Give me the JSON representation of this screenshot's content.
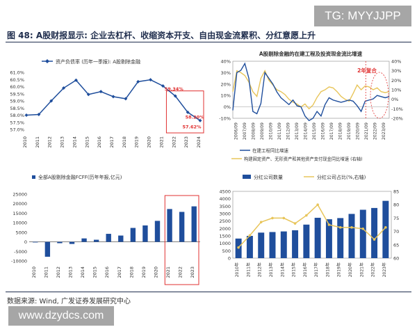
{
  "watermark_top": "TG: MYYJJPP",
  "figure_title": "图 48: A股财报显示: 企业去杠杆、收缩资本开支、自由现金流累积、分红意愿上升",
  "source": "数据来源: Wind, 广发证券发展研究中心",
  "watermark_bottom": "www.dzydcs.com",
  "colors": {
    "navy": "#1f4e9c",
    "gold": "#e8c55a",
    "red": "#e03030",
    "text": "#1f2d4d"
  },
  "chart_data": [
    {
      "type": "line",
      "legend": [
        "资产负债率 (历年一季报): A股剔除金融"
      ],
      "x": [
        "2010",
        "2011",
        "2012",
        "2013",
        "2014",
        "2015",
        "2016",
        "2017",
        "2018",
        "2019",
        "2020",
        "2021",
        "2022",
        "2023",
        "2024"
      ],
      "series": [
        {
          "name": "资产负债率 (历年一季报): A股剔除金融",
          "values": [
            58.0,
            58.05,
            59.0,
            59.9,
            60.45,
            59.45,
            59.65,
            59.3,
            59.15,
            60.35,
            60.48,
            60.05,
            59.34,
            58.2,
            57.62
          ]
        }
      ],
      "ylim": [
        57.0,
        61.0
      ],
      "yticks": [
        "57.0%",
        "57.5%",
        "58.0%",
        "58.5%",
        "59.0%",
        "59.5%",
        "60.0%",
        "60.5%",
        "61.0%"
      ],
      "annotations": [
        "59.34%",
        "58.20%",
        "57.62%"
      ],
      "grid": false
    },
    {
      "type": "line",
      "title": "A股剔除金融的在建工程及投资现金流比增速",
      "x_ticks": [
        "2006/09",
        "2007/09",
        "2008/09",
        "2009/09",
        "2010/09",
        "2011/09",
        "2012/09",
        "2013/09",
        "2014/09",
        "2015/09",
        "2016/09",
        "2017/09",
        "2018/09",
        "2019/09",
        "2020/09",
        "2021/09",
        "2022/09",
        "2023/09"
      ],
      "series": [
        {
          "name": "在建工程同比增速",
          "values": [
            -3,
            30,
            32,
            38,
            25,
            -4,
            -6,
            3,
            30,
            25,
            20,
            13,
            8,
            5,
            2,
            6,
            1,
            0,
            -8,
            -12,
            -10,
            -4,
            -8,
            2,
            8,
            6,
            5,
            4,
            5,
            6,
            5,
            1,
            -4,
            5,
            6,
            7,
            10,
            9,
            8,
            9
          ]
        },
        {
          "name": "构建固定资产、无形资产和其他资产支付现金同比增速 (右轴)",
          "values": [
            8,
            30,
            28,
            25,
            18,
            8,
            3,
            22,
            30,
            20,
            15,
            10,
            8,
            5,
            0,
            -3,
            -5,
            -8,
            -5,
            -10,
            -6,
            2,
            8,
            10,
            13,
            12,
            8,
            3,
            0,
            -2,
            6,
            15,
            10,
            14,
            13,
            10,
            12,
            8,
            7,
            8
          ]
        }
      ],
      "ylim": [
        -10,
        40
      ],
      "y2lim": [
        -20,
        40
      ],
      "yticks": [
        "-10%",
        "0%",
        "10%",
        "20%",
        "30%",
        "40%"
      ],
      "y2ticks": [
        "-20%",
        "-10%",
        "0%",
        "10%",
        "20%",
        "30%",
        "40%"
      ],
      "annotation": "2年复合"
    },
    {
      "type": "bar",
      "legend": [
        "全部A股剔除金融FCFF(历年年报,亿元)"
      ],
      "categories": [
        "2010",
        "2011",
        "2012",
        "2013",
        "2014",
        "2015",
        "2016",
        "2017",
        "2018",
        "2019",
        "2020",
        "2021",
        "2022",
        "2023"
      ],
      "values": [
        -300,
        -7800,
        -700,
        -1100,
        1800,
        1100,
        4200,
        3300,
        7300,
        8600,
        11000,
        17200,
        15700,
        18600
      ],
      "ylim": [
        -10000,
        25000
      ],
      "yticks": [
        "-10000",
        "-5000",
        "0",
        "5000",
        "10000",
        "15000",
        "20000",
        "25000"
      ]
    },
    {
      "type": "bar",
      "legend": [
        "分红公司数量",
        "分红公司占比(%,右轴)"
      ],
      "categories": [
        "2010年",
        "2011年",
        "2012年",
        "2013年",
        "2014年",
        "2015年",
        "2016年",
        "2017年",
        "2018年",
        "2019年",
        "2020年",
        "2021年",
        "2022年",
        "2023年"
      ],
      "series": [
        {
          "name": "分红公司数量",
          "values": [
            1320,
            1500,
            1720,
            1760,
            1800,
            1880,
            2260,
            2720,
            2620,
            2700,
            2980,
            3260,
            3380,
            3860
          ]
        },
        {
          "name": "分红公司占比(%,右轴)",
          "values": [
            64,
            68.5,
            73.5,
            75,
            75,
            73,
            76,
            80,
            72.5,
            71.5,
            71.5,
            71,
            67,
            71.5
          ]
        }
      ],
      "ylim": [
        0,
        4500
      ],
      "y2lim": [
        60,
        85
      ],
      "yticks": [
        "0",
        "500",
        "1000",
        "1500",
        "2000",
        "2500",
        "3000",
        "3500",
        "4000",
        "4500"
      ],
      "y2ticks": [
        "60",
        "65",
        "70",
        "75",
        "80",
        "85"
      ]
    }
  ]
}
